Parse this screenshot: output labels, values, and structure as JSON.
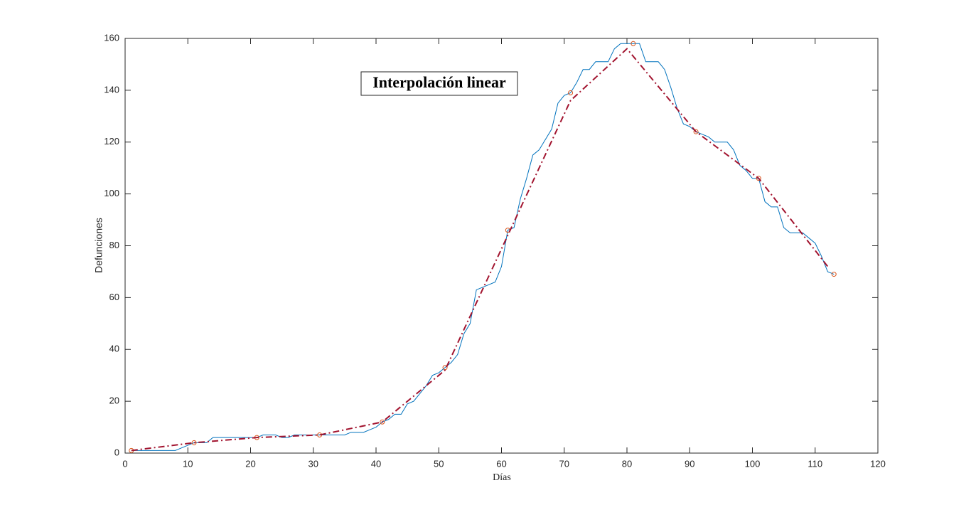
{
  "chart_data": {
    "type": "line",
    "annotation": "Interpolación linear",
    "x_label": "Días",
    "y_label": "Defunciones",
    "xlim": [
      0,
      120
    ],
    "xticks": [
      0,
      10,
      20,
      30,
      40,
      50,
      60,
      70,
      80,
      90,
      100,
      110,
      120
    ],
    "ylim": [
      0,
      160
    ],
    "yticks": [
      0,
      20,
      40,
      60,
      80,
      100,
      120,
      140,
      160
    ],
    "grid": false,
    "series": [
      {
        "color": "#0072bd",
        "style": "solid",
        "marker": "none",
        "x": [
          1,
          2,
          3,
          4,
          5,
          6,
          7,
          8,
          9,
          10,
          11,
          12,
          13,
          14,
          15,
          16,
          17,
          18,
          19,
          20,
          21,
          22,
          23,
          24,
          25,
          26,
          27,
          28,
          29,
          30,
          31,
          32,
          33,
          34,
          35,
          36,
          37,
          38,
          39,
          40,
          41,
          42,
          43,
          44,
          45,
          46,
          47,
          48,
          49,
          50,
          51,
          52,
          53,
          54,
          55,
          56,
          57,
          58,
          59,
          60,
          61,
          62,
          63,
          64,
          65,
          66,
          67,
          68,
          69,
          70,
          71,
          72,
          73,
          74,
          75,
          76,
          77,
          78,
          79,
          80,
          81,
          82,
          83,
          84,
          85,
          86,
          87,
          88,
          89,
          90,
          91,
          92,
          93,
          94,
          95,
          96,
          97,
          98,
          99,
          100,
          101,
          102,
          103,
          104,
          105,
          106,
          107,
          108,
          109,
          110,
          111,
          112,
          113
        ],
        "values": [
          1,
          1,
          1,
          1,
          1,
          1,
          1,
          1,
          2,
          3,
          4,
          4,
          4,
          6,
          6,
          6,
          6,
          6,
          6,
          6,
          6,
          7,
          7,
          7,
          6,
          6,
          7,
          7,
          7,
          7,
          7,
          7,
          7,
          7,
          7,
          8,
          8,
          8,
          9,
          10,
          12,
          13,
          15,
          15,
          19,
          20,
          23,
          26,
          30,
          31,
          33,
          35,
          38,
          46,
          50,
          63,
          64,
          65,
          66,
          72,
          86,
          87,
          98,
          106,
          115,
          117,
          121,
          125,
          135,
          138,
          139,
          143,
          148,
          148,
          151,
          151,
          151,
          156,
          158,
          158,
          158,
          158,
          151,
          151,
          151,
          148,
          141,
          133,
          127,
          126,
          124,
          123,
          122,
          120,
          120,
          120,
          117,
          111,
          109,
          106,
          106,
          97,
          95,
          95,
          87,
          85,
          85,
          85,
          83,
          81,
          76,
          70,
          69
        ]
      },
      {
        "color": "#d95319",
        "style": "none",
        "marker": "circle",
        "x": [
          1,
          11,
          21,
          31,
          41,
          51,
          61,
          71,
          81,
          91,
          101,
          113
        ],
        "values": [
          1,
          4,
          6,
          7,
          12,
          33,
          86,
          139,
          158,
          124,
          106,
          69
        ]
      },
      {
        "color": "#a2142f",
        "style": "dashdot",
        "marker": "none",
        "x": [
          1,
          11,
          21,
          31,
          41,
          51,
          61,
          71,
          80,
          91,
          101,
          112
        ],
        "values": [
          1,
          4,
          6,
          7,
          12,
          32,
          84,
          136,
          156,
          124,
          106,
          72
        ]
      }
    ]
  }
}
